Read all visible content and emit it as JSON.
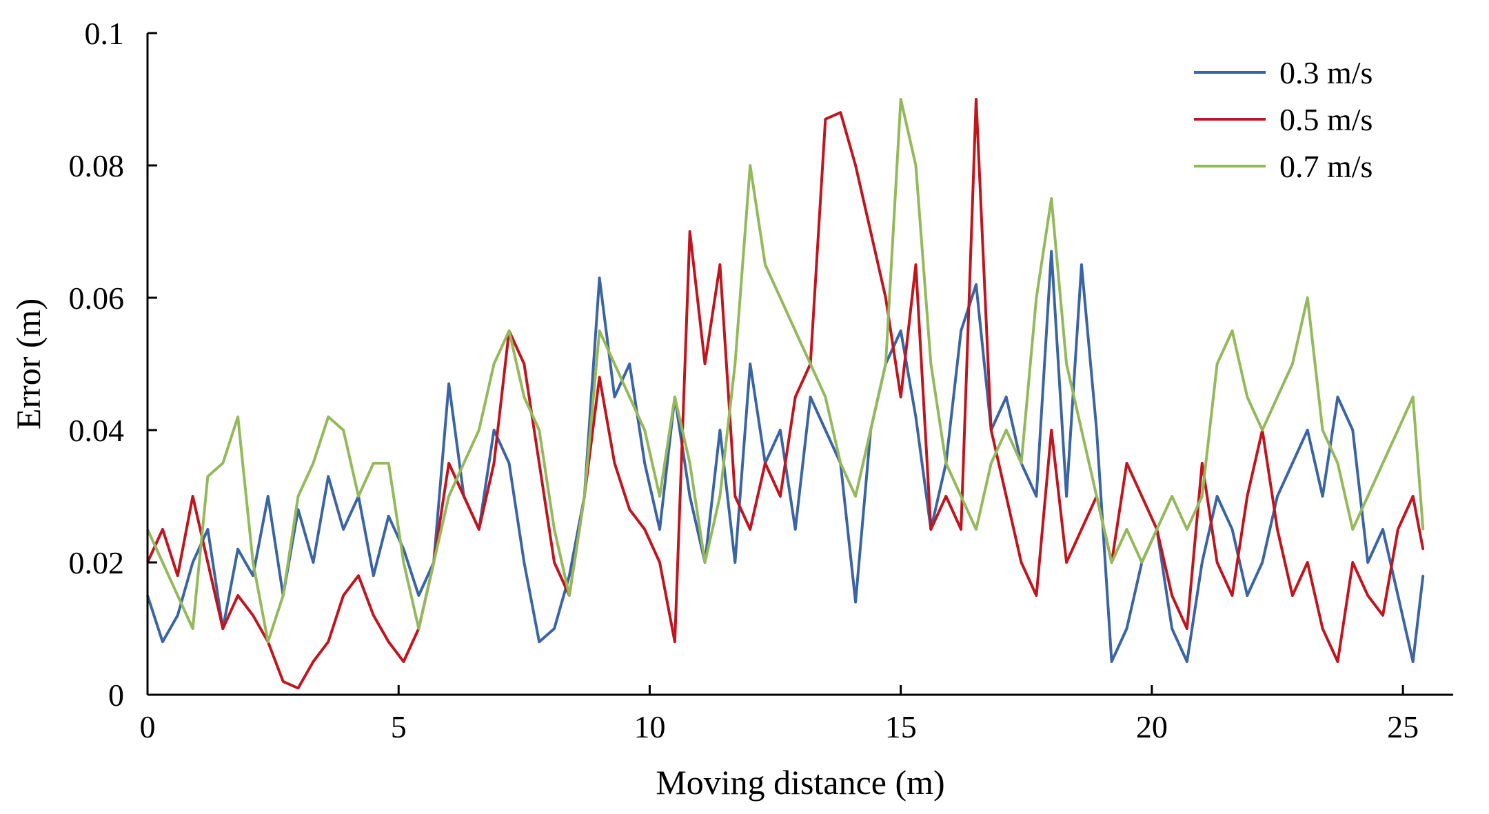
{
  "chart_data": {
    "type": "line",
    "title": "",
    "xlabel": "Moving distance (m)",
    "ylabel": "Error (m)",
    "xlim": [
      0,
      26
    ],
    "ylim": [
      0,
      0.1
    ],
    "xticks": [
      0,
      5,
      10,
      15,
      20,
      25
    ],
    "yticks": [
      0,
      0.02,
      0.04,
      0.06,
      0.08,
      0.1
    ],
    "xtick_labels": [
      "0",
      "5",
      "10",
      "15",
      "20",
      "25"
    ],
    "ytick_labels": [
      "0",
      "0.02",
      "0.04",
      "0.06",
      "0.08",
      "0.1"
    ],
    "grid": false,
    "legend_position": "top-right",
    "series": [
      {
        "name": "0.3 m/s",
        "color": "#3a64a3",
        "x": [
          0,
          0.3,
          0.6,
          0.9,
          1.2,
          1.5,
          1.8,
          2.1,
          2.4,
          2.7,
          3.0,
          3.3,
          3.6,
          3.9,
          4.2,
          4.5,
          4.8,
          5.1,
          5.4,
          5.7,
          6.0,
          6.3,
          6.6,
          6.9,
          7.2,
          7.5,
          7.8,
          8.1,
          8.4,
          8.7,
          9.0,
          9.3,
          9.6,
          9.9,
          10.2,
          10.5,
          10.8,
          11.1,
          11.4,
          11.7,
          12.0,
          12.3,
          12.6,
          12.9,
          13.2,
          13.5,
          13.8,
          14.1,
          14.4,
          14.7,
          15.0,
          15.3,
          15.6,
          15.9,
          16.2,
          16.5,
          16.8,
          17.1,
          17.4,
          17.7,
          18.0,
          18.3,
          18.6,
          18.9,
          19.2,
          19.5,
          19.8,
          20.1,
          20.4,
          20.7,
          21.0,
          21.3,
          21.6,
          21.9,
          22.2,
          22.5,
          22.8,
          23.1,
          23.4,
          23.7,
          24.0,
          24.3,
          24.6,
          24.9,
          25.2,
          25.4
        ],
        "y": [
          0.015,
          0.008,
          0.012,
          0.02,
          0.025,
          0.01,
          0.022,
          0.018,
          0.03,
          0.015,
          0.028,
          0.02,
          0.033,
          0.025,
          0.03,
          0.018,
          0.027,
          0.022,
          0.015,
          0.02,
          0.047,
          0.03,
          0.025,
          0.04,
          0.035,
          0.02,
          0.008,
          0.01,
          0.018,
          0.03,
          0.063,
          0.045,
          0.05,
          0.035,
          0.025,
          0.045,
          0.03,
          0.02,
          0.04,
          0.02,
          0.05,
          0.035,
          0.04,
          0.025,
          0.045,
          0.04,
          0.035,
          0.014,
          0.04,
          0.05,
          0.055,
          0.042,
          0.025,
          0.035,
          0.055,
          0.062,
          0.04,
          0.045,
          0.035,
          0.03,
          0.067,
          0.03,
          0.065,
          0.04,
          0.005,
          0.01,
          0.02,
          0.025,
          0.01,
          0.005,
          0.02,
          0.03,
          0.025,
          0.015,
          0.02,
          0.03,
          0.035,
          0.04,
          0.03,
          0.045,
          0.04,
          0.02,
          0.025,
          0.015,
          0.005,
          0.018
        ]
      },
      {
        "name": "0.5 m/s",
        "color": "#c0141e",
        "x": [
          0,
          0.3,
          0.6,
          0.9,
          1.2,
          1.5,
          1.8,
          2.1,
          2.4,
          2.7,
          3.0,
          3.3,
          3.6,
          3.9,
          4.2,
          4.5,
          4.8,
          5.1,
          5.4,
          5.7,
          6.0,
          6.3,
          6.6,
          6.9,
          7.2,
          7.5,
          7.8,
          8.1,
          8.4,
          8.7,
          9.0,
          9.3,
          9.6,
          9.9,
          10.2,
          10.5,
          10.8,
          11.1,
          11.4,
          11.7,
          12.0,
          12.3,
          12.6,
          12.9,
          13.2,
          13.5,
          13.8,
          14.1,
          14.4,
          14.7,
          15.0,
          15.3,
          15.6,
          15.9,
          16.2,
          16.5,
          16.8,
          17.1,
          17.4,
          17.7,
          18.0,
          18.3,
          18.6,
          18.9,
          19.2,
          19.5,
          19.8,
          20.1,
          20.4,
          20.7,
          21.0,
          21.3,
          21.6,
          21.9,
          22.2,
          22.5,
          22.8,
          23.1,
          23.4,
          23.7,
          24.0,
          24.3,
          24.6,
          24.9,
          25.2,
          25.4
        ],
        "y": [
          0.02,
          0.025,
          0.018,
          0.03,
          0.02,
          0.01,
          0.015,
          0.012,
          0.008,
          0.002,
          0.001,
          0.005,
          0.008,
          0.015,
          0.018,
          0.012,
          0.008,
          0.005,
          0.01,
          0.02,
          0.035,
          0.03,
          0.025,
          0.035,
          0.055,
          0.05,
          0.035,
          0.02,
          0.015,
          0.03,
          0.048,
          0.035,
          0.028,
          0.025,
          0.02,
          0.008,
          0.07,
          0.05,
          0.065,
          0.03,
          0.025,
          0.035,
          0.03,
          0.045,
          0.05,
          0.087,
          0.088,
          0.08,
          0.07,
          0.06,
          0.045,
          0.065,
          0.025,
          0.03,
          0.025,
          0.09,
          0.04,
          0.03,
          0.02,
          0.015,
          0.04,
          0.02,
          0.025,
          0.03,
          0.02,
          0.035,
          0.03,
          0.025,
          0.015,
          0.01,
          0.035,
          0.02,
          0.015,
          0.03,
          0.04,
          0.025,
          0.015,
          0.02,
          0.01,
          0.005,
          0.02,
          0.015,
          0.012,
          0.025,
          0.03,
          0.022
        ]
      },
      {
        "name": "0.7 m/s",
        "color": "#94b95a",
        "x": [
          0,
          0.3,
          0.6,
          0.9,
          1.2,
          1.5,
          1.8,
          2.1,
          2.4,
          2.7,
          3.0,
          3.3,
          3.6,
          3.9,
          4.2,
          4.5,
          4.8,
          5.1,
          5.4,
          5.7,
          6.0,
          6.3,
          6.6,
          6.9,
          7.2,
          7.5,
          7.8,
          8.1,
          8.4,
          8.7,
          9.0,
          9.3,
          9.6,
          9.9,
          10.2,
          10.5,
          10.8,
          11.1,
          11.4,
          11.7,
          12.0,
          12.3,
          12.6,
          12.9,
          13.2,
          13.5,
          13.8,
          14.1,
          14.4,
          14.7,
          15.0,
          15.3,
          15.6,
          15.9,
          16.2,
          16.5,
          16.8,
          17.1,
          17.4,
          17.7,
          18.0,
          18.3,
          18.6,
          18.9,
          19.2,
          19.5,
          19.8,
          20.1,
          20.4,
          20.7,
          21.0,
          21.3,
          21.6,
          21.9,
          22.2,
          22.5,
          22.8,
          23.1,
          23.4,
          23.7,
          24.0,
          24.3,
          24.6,
          24.9,
          25.2,
          25.4
        ],
        "y": [
          0.025,
          0.02,
          0.015,
          0.01,
          0.033,
          0.035,
          0.042,
          0.02,
          0.008,
          0.015,
          0.03,
          0.035,
          0.042,
          0.04,
          0.03,
          0.035,
          0.035,
          0.02,
          0.01,
          0.02,
          0.03,
          0.035,
          0.04,
          0.05,
          0.055,
          0.045,
          0.04,
          0.025,
          0.015,
          0.03,
          0.055,
          0.05,
          0.045,
          0.04,
          0.03,
          0.045,
          0.035,
          0.02,
          0.03,
          0.05,
          0.08,
          0.065,
          0.06,
          0.055,
          0.05,
          0.045,
          0.035,
          0.03,
          0.04,
          0.05,
          0.09,
          0.08,
          0.05,
          0.035,
          0.03,
          0.025,
          0.035,
          0.04,
          0.035,
          0.06,
          0.075,
          0.05,
          0.04,
          0.03,
          0.02,
          0.025,
          0.02,
          0.025,
          0.03,
          0.025,
          0.03,
          0.05,
          0.055,
          0.045,
          0.04,
          0.045,
          0.05,
          0.06,
          0.04,
          0.035,
          0.025,
          0.03,
          0.035,
          0.04,
          0.045,
          0.025
        ]
      }
    ]
  }
}
